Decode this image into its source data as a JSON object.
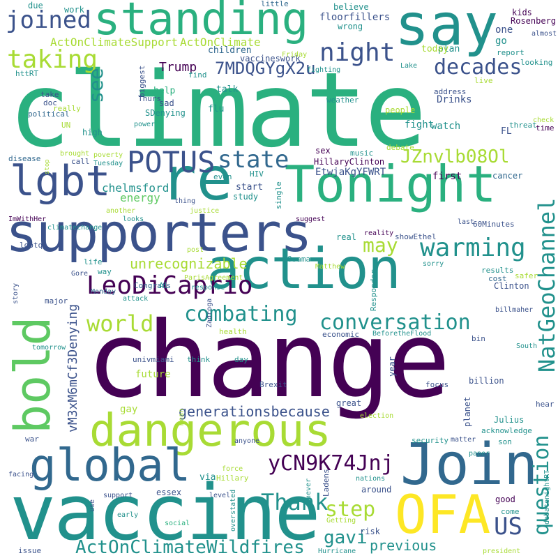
{
  "palette": {
    "dark_purple": "#440154",
    "indigo": "#3b528b",
    "blue": "#31688e",
    "teal": "#21918c",
    "green": "#2ab07f",
    "light_green": "#5ec962",
    "lime": "#a8db34",
    "yellow": "#fde725"
  },
  "words": {
    "climate": "climate",
    "change": "change",
    "vaccine": "vaccine",
    "say": "say",
    "standing": "standing",
    "supporters": "supporters",
    "action": "action",
    "bold": "bold",
    "re": "re",
    "tonight": "Tonight",
    "join": "Join",
    "ofa": "OFA",
    "dangerous": "dangerous",
    "global": "global",
    "lgbt": "lgbt",
    "joined": "joined",
    "night": "night",
    "taking": "taking",
    "decades": "decades",
    "potus": "POTUS",
    "state": "state",
    "warming": "warming",
    "leodicaprio": "LeoDiCaprio",
    "natgeochannel": "NatGeoChannel",
    "combating": "combating",
    "conversation": "conversation",
    "world": "world",
    "question": "question",
    "thank": "Thank",
    "ycn9k74jnj": "yCN9K74Jnj",
    "jznvlb08ol": "JZnvlb08Ol",
    "us": "US",
    "step": "step",
    "gavi": "gavi",
    "actonclimatewildfires": "ActOnClimateWildfires",
    "previous": "previous",
    "may": "may",
    "see": "see",
    "mdqgygx2u": "7MDQGYgX2u",
    "unrecognizable": "unrecognizable",
    "generationsbecause": "generationsbecause",
    "vm3xm6mcf3denying": "vM3xM6mCf3Denying",
    "trump": "Trump",
    "floorfillers": "floorfillers",
    "actonclimatesupport": "ActOnClimateSupport",
    "actonclimate": "ActOnClimate",
    "children": "children",
    "vaccineswork": "vaccineswork",
    "chelmsford": "chelmsford",
    "energy": "energy",
    "etwjakgyfwrt": "EtwjaKgYFWRT",
    "hillaryclinton": "HillaryClinton",
    "drinks": "Drinks",
    "watch": "watch",
    "fight": "fight",
    "plan": "plan",
    "today": "today",
    "go": "go",
    "one": "one",
    "rosenberg": "Rosenberg",
    "kids": "kids",
    "believe": "believe",
    "wrong": "wrong",
    "due": "due",
    "work": "work",
    "little": "little",
    "almost": "almost",
    "report": "report",
    "looking": "looking",
    "friday": "Friday",
    "lake": "Lake",
    "fighting": "fighting",
    "biggest": "biggest",
    "find": "find",
    "live": "live",
    "address": "address",
    "weather": "weather",
    "people": "people",
    "check": "check",
    "time": "time",
    "threat": "threat",
    "fl": "FL",
    "debate": "debate",
    "sex": "sex",
    "music": "music",
    "cancer": "cancer",
    "first": "first",
    "httrt": "httRT",
    "take": "take",
    "doc": "doc",
    "political": "political",
    "really": "really",
    "un": "UN",
    "thurs": "Thurs",
    "sdenying": "SDenying",
    "sad": "sad",
    "help": "help",
    "talk": "talk",
    "flu": "flu",
    "power": "power",
    "high": "high",
    "disease": "disease",
    "call": "call",
    "tuesday": "Tuesday",
    "brought": "brought",
    "poverty": "poverty",
    "stop": "stop",
    "even": "even",
    "hiv": "HIV",
    "start": "start",
    "study": "study",
    "single": "single",
    "thing": "thing",
    "justice": "justice",
    "another": "another",
    "looks": "looks",
    "imwithher": "ImWithHer",
    "climatechange": "climatechange",
    "suggest": "suggest",
    "last": "last",
    "sixtyminutes": "60Minutes",
    "lgbtq": "lgbtq",
    "real": "real",
    "reality": "reality",
    "showethel": "showEthel",
    "post": "post",
    "life": "life",
    "way": "way",
    "gore": "Gore",
    "osama": "Osama",
    "sorry": "sorry",
    "matthew": "Matthew",
    "responder": "Responder",
    "results": "results",
    "cost": "cost",
    "safer": "safer",
    "clinton": "Clinton",
    "congrats": "Congrats",
    "al": "Al",
    "parisagreement": "ParisAgreement",
    "attack": "attack",
    "response": "response",
    "story": "story",
    "major": "major",
    "monday": "Monday",
    "zadroga": "Zadroga",
    "health": "health",
    "billmaher": "billmaher",
    "economic": "economic",
    "beforetheflood": "BeforetheFlood",
    "bin": "bin",
    "south": "South",
    "tomorrow": "tomorrow",
    "univmiami": "univmiami",
    "think": "think",
    "day": "day",
    "future": "future",
    "year": "year",
    "brexit": "Brexit",
    "focus": "focus",
    "billion": "billion",
    "hear": "hear",
    "gay": "gay",
    "mean": "mean",
    "great": "great",
    "election": "election",
    "planet": "planet",
    "julius": "Julius",
    "acknowledge": "acknowledge",
    "war": "war",
    "anyone": "anyone",
    "security": "security",
    "matter": "matter",
    "son": "son",
    "force": "force",
    "paper": "paper",
    "via": "via",
    "hillary": "Hillary",
    "never": "never",
    "facing": "facing",
    "ladens": "Ladens",
    "nations": "nations",
    "debatenightrt": "debatenightRT",
    "essex": "essex",
    "support": "support",
    "overstated": "overstated",
    "level": "level",
    "around": "around",
    "good": "good",
    "use": "use",
    "early": "early",
    "social": "social",
    "getting": "Getting",
    "risk": "risk",
    "come": "come",
    "issue": "issue",
    "hurricane": "Hurricane",
    "president": "president"
  }
}
